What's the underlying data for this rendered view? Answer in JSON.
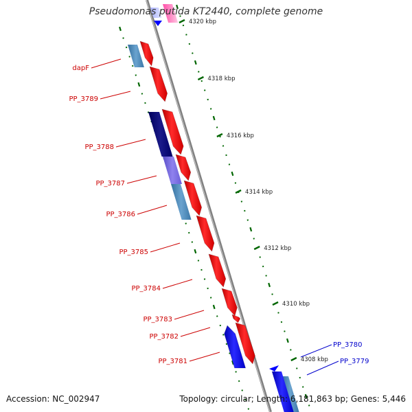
{
  "title": "Pseudomonas putida KT2440, complete genome",
  "footer": {
    "accession": "Accession: NC_002947",
    "summary": "Topology: circular; Length: 6,181,863 bp; Genes: 5,446"
  },
  "colors": {
    "forward_gene": "#ff0000",
    "reverse_gene": "#0000ff",
    "forward_label": "#cc0000",
    "reverse_label": "#0000cc",
    "backbone": "#808080",
    "tick": "#006600",
    "feature_dark": "#000080",
    "feature_light": "#4682b4",
    "feature_violet": "#7b68ee",
    "feature_pink": "#ff69b4"
  },
  "scale_labels": [
    "4320 kbp",
    "4318 kbp",
    "4316 kbp",
    "4314 kbp",
    "4312 kbp",
    "4310 kbp",
    "4308 kbp"
  ],
  "forward_genes": [
    "dapF",
    "PP_3789",
    "PP_3788",
    "PP_3787",
    "PP_3786",
    "PP_3785",
    "PP_3784",
    "PP_3783",
    "PP_3782",
    "PP_3781"
  ],
  "reverse_genes": [
    "PP_3780",
    "PP_3779"
  ]
}
